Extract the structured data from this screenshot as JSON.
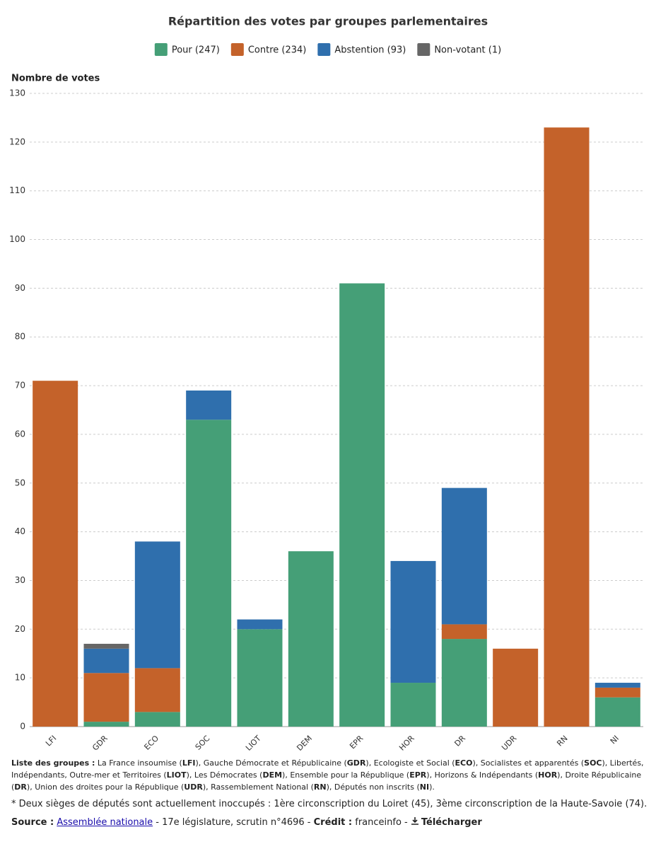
{
  "chart_data": {
    "type": "stacked-bar",
    "title": "Répartition des votes par groupes parlementaires",
    "y_label": "Nombre de votes",
    "categories": [
      "LFI",
      "GDR",
      "ECO",
      "SOC",
      "LIOT",
      "DEM",
      "EPR",
      "HOR",
      "DR",
      "UDR",
      "RN",
      "NI"
    ],
    "series": [
      {
        "name": "Pour (247)",
        "color": "#459f77",
        "values": [
          0,
          1,
          3,
          63,
          20,
          36,
          91,
          9,
          18,
          0,
          0,
          6
        ]
      },
      {
        "name": "Contre (234)",
        "color": "#c4622a",
        "values": [
          71,
          10,
          9,
          0,
          0,
          0,
          0,
          0,
          3,
          16,
          123,
          2
        ]
      },
      {
        "name": "Abstention (93)",
        "color": "#2f6fad",
        "values": [
          0,
          5,
          26,
          6,
          2,
          0,
          0,
          25,
          28,
          0,
          0,
          1
        ]
      },
      {
        "name": "Non-votant (1)",
        "color": "#666666",
        "values": [
          0,
          1,
          0,
          0,
          0,
          0,
          0,
          0,
          0,
          0,
          0,
          0
        ]
      }
    ],
    "ylim": [
      0,
      130
    ],
    "yticks": [
      0,
      10,
      20,
      30,
      40,
      50,
      60,
      70,
      80,
      90,
      100,
      110,
      120,
      130
    ],
    "grid": true
  },
  "footer": {
    "groups": [
      {
        "text": "Liste des groupes :",
        "bold": true
      },
      {
        "text": " La France insoumise ("
      },
      {
        "text": "LFI",
        "bold": true
      },
      {
        "text": "), Gauche Démocrate et Républicaine ("
      },
      {
        "text": "GDR",
        "bold": true
      },
      {
        "text": "), Ecologiste et Social ("
      },
      {
        "text": "ECO",
        "bold": true
      },
      {
        "text": "), Socialistes et apparentés ("
      },
      {
        "text": "SOC",
        "bold": true
      },
      {
        "text": "), Libertés, Indépendants, Outre-mer et Territoires ("
      },
      {
        "text": "LIOT",
        "bold": true
      },
      {
        "text": "), Les Démocrates ("
      },
      {
        "text": "DEM",
        "bold": true
      },
      {
        "text": "), Ensemble pour la République ("
      },
      {
        "text": "EPR",
        "bold": true
      },
      {
        "text": "), Horizons & Indépendants ("
      },
      {
        "text": "HOR",
        "bold": true
      },
      {
        "text": "), Droite Républicaine ("
      },
      {
        "text": "DR",
        "bold": true
      },
      {
        "text": "), Union des droites pour la République ("
      },
      {
        "text": "UDR",
        "bold": true
      },
      {
        "text": "), Rassemblement National ("
      },
      {
        "text": "RN",
        "bold": true
      },
      {
        "text": "), Députés non inscrits ("
      },
      {
        "text": "NI",
        "bold": true
      },
      {
        "text": ")."
      }
    ],
    "note": "* Deux sièges de députés sont actuellement inoccupés : 1ère circonscription du Loiret (45), 3ème circonscription de la Haute-Savoie (74).",
    "source": [
      {
        "text": "Source :",
        "bold": true
      },
      {
        "text": " "
      },
      {
        "text": "Assemblée nationale",
        "link": true
      },
      {
        "text": " - 17e législature, scrutin n°4696 - "
      },
      {
        "text": "Crédit :",
        "bold": true
      },
      {
        "text": " franceinfo - "
      },
      {
        "text": "Télécharger",
        "bold": true,
        "download": true
      }
    ]
  }
}
